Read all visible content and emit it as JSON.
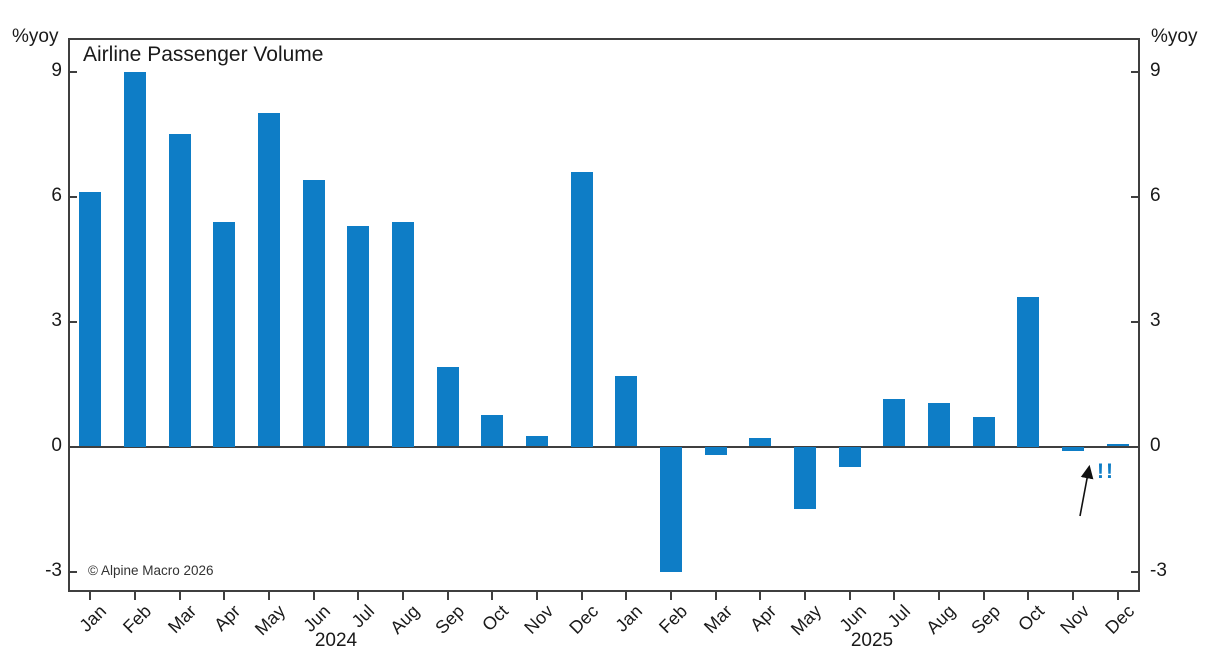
{
  "axes": {
    "left_unit": "%yoy",
    "right_unit": "%yoy"
  },
  "chart_data": {
    "type": "bar",
    "title": "Airline Passenger Volume",
    "categories": [
      "Jan",
      "Feb",
      "Mar",
      "Apr",
      "May",
      "Jun",
      "Jul",
      "Aug",
      "Sep",
      "Oct",
      "Nov",
      "Dec",
      "Jan",
      "Feb",
      "Mar",
      "Apr",
      "May",
      "Jun",
      "Jul",
      "Aug",
      "Sep",
      "Oct",
      "Nov",
      "Dec"
    ],
    "years": [
      "2024",
      "2025"
    ],
    "values": [
      6.1,
      9.0,
      7.5,
      5.4,
      8.0,
      6.4,
      5.3,
      5.4,
      1.9,
      0.75,
      0.25,
      6.6,
      1.7,
      -3.0,
      -0.2,
      0.2,
      -1.5,
      -0.5,
      1.15,
      1.05,
      0.7,
      3.6,
      -0.1,
      0.05
    ],
    "ylabel_left": "%yoy",
    "ylabel_right": "%yoy",
    "yticks": [
      9,
      6,
      3,
      0,
      -3
    ],
    "ylim": [
      -3.5,
      9.8
    ],
    "grid": false,
    "legend": null,
    "bar_color": "#0e7dc6",
    "axis_color": "#3f3f3f",
    "annotation": {
      "text": "!!",
      "color": "#0e7dc6",
      "arrow": true,
      "target": "Nov 2025 bar"
    },
    "watermark": "© Alpine Macro 2026"
  }
}
